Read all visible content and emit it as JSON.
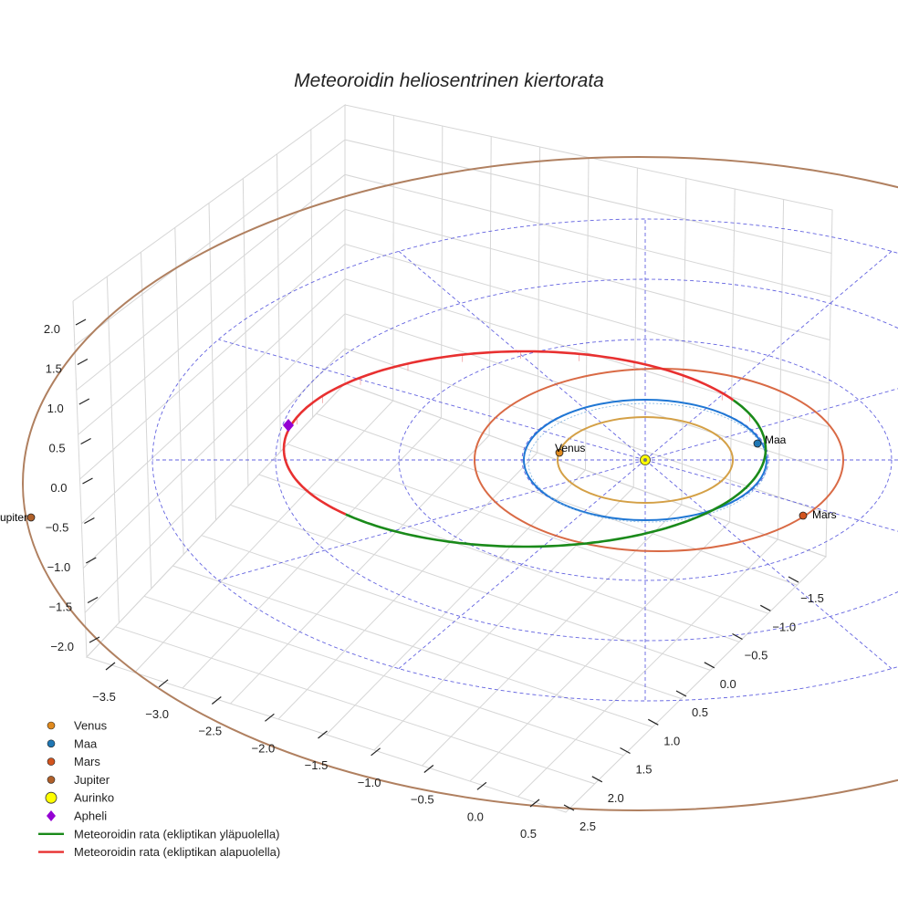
{
  "chart_data": {
    "type": "line",
    "title": "Meteoroidin heliosentrinen kiertorata",
    "projection": "3d",
    "grid": true,
    "legend_position": "lower-left",
    "axes": {
      "x": {
        "ticks": [
          "−3.5",
          "−3.0",
          "−2.5",
          "−2.0",
          "−1.5",
          "−1.0",
          "−0.5",
          "0.0",
          "0.5"
        ]
      },
      "y": {
        "ticks": [
          "−1.5",
          "−1.0",
          "−0.5",
          "0.0",
          "0.5",
          "1.0",
          "1.5",
          "2.0",
          "2.5"
        ]
      },
      "z": {
        "ticks": [
          "2.0",
          "1.5",
          "1.0",
          "0.5",
          "0.0",
          "−0.5",
          "−1.0",
          "−1.5",
          "−2.0"
        ]
      }
    },
    "planets": [
      {
        "name": "Venus",
        "orbit_radius": 0.72,
        "color": "#d4a046"
      },
      {
        "name": "Maa",
        "orbit_radius": 1.0,
        "color": "#1f77d4"
      },
      {
        "name": "Mars",
        "orbit_radius": 1.52,
        "color": "#d96a45"
      },
      {
        "name": "Jupiter",
        "orbit_radius": 5.2,
        "color": "#b08060"
      }
    ],
    "labels": {
      "venus": "Venus",
      "maa": "Maa",
      "mars": "Mars",
      "jupiter": "Jupiter"
    },
    "legend": [
      {
        "label": "Venus",
        "marker": "dot",
        "color": "#e08a1e"
      },
      {
        "label": "Maa",
        "marker": "dot",
        "color": "#1f77b4"
      },
      {
        "label": "Mars",
        "marker": "dot",
        "color": "#d3541e"
      },
      {
        "label": "Jupiter",
        "marker": "dot",
        "color": "#b0602a"
      },
      {
        "label": "Aurinko",
        "marker": "sun",
        "color": "#ffff00"
      },
      {
        "label": "Apheli",
        "marker": "diamond",
        "color": "#9400d3"
      },
      {
        "label": "Meteoroidin rata (ekliptikan yläpuolella)",
        "marker": "line",
        "color": "#1a8a1a"
      },
      {
        "label": "Meteoroidin rata (ekliptikan alapuolella)",
        "marker": "line",
        "color": "#e83030"
      }
    ],
    "colors": {
      "orbit_above": "#1a8a1a",
      "orbit_below": "#e83030",
      "grid": "#d6d6d6",
      "reference": "#3c3cd8",
      "aphelion": "#9400d3",
      "sun": "#ffff00"
    }
  }
}
